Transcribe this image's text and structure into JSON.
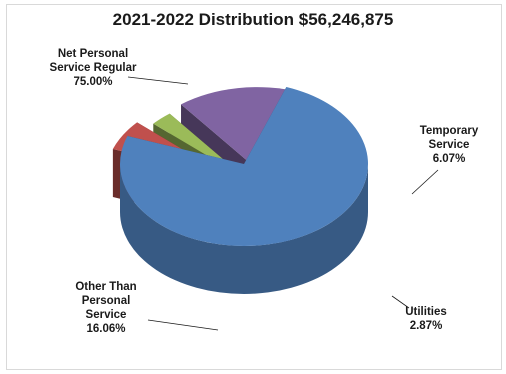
{
  "chart_data": {
    "type": "pie",
    "title": "2021-2022 Distribution $56,246,875",
    "slices": [
      {
        "label": [
          "Net Personal",
          "Service Regular"
        ],
        "value": 75.0,
        "display": "75.00%",
        "color": "#4f81bd"
      },
      {
        "label": [
          "Temporary",
          "Service"
        ],
        "value": 6.07,
        "display": "6.07%",
        "color": "#c0504d"
      },
      {
        "label": [
          "Utilities"
        ],
        "value": 2.87,
        "display": "2.87%",
        "color": "#9bbb59"
      },
      {
        "label": [
          "Other Than",
          "Personal",
          "Service"
        ],
        "value": 16.06,
        "display": "16.06%",
        "color": "#8064a2"
      }
    ]
  }
}
